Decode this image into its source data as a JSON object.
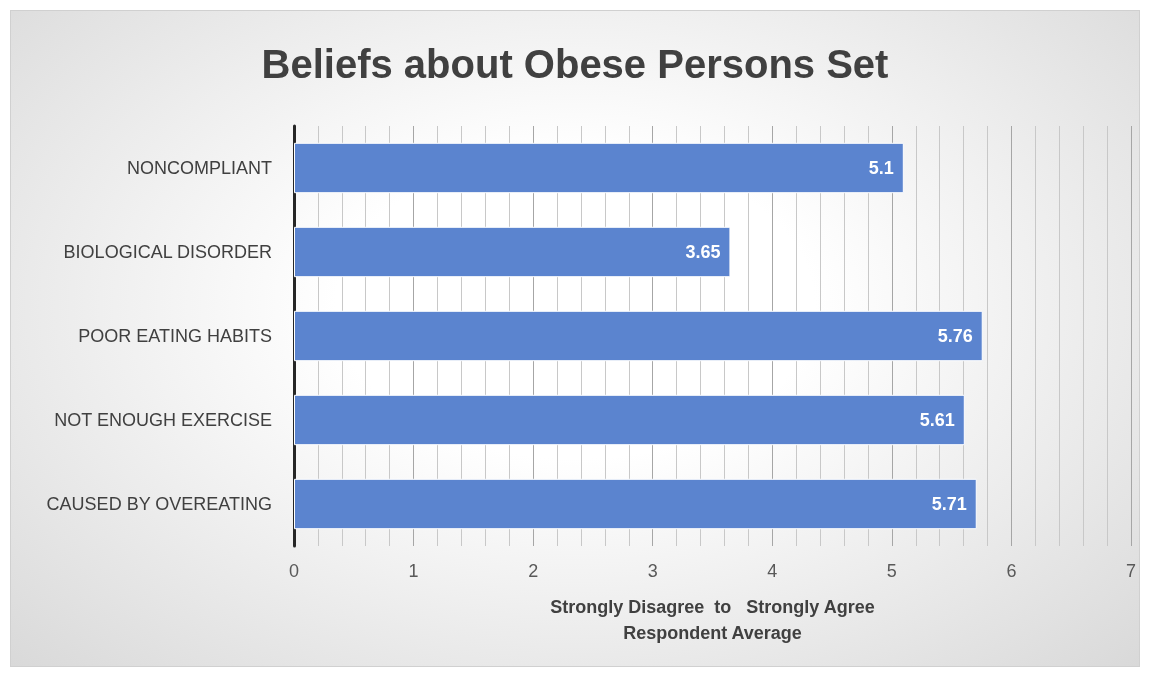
{
  "chart_data": {
    "type": "bar",
    "orientation": "horizontal",
    "title": "Beliefs about Obese Persons Set",
    "xlabel": "Strongly Disagree  to   Strongly Agree\nRespondent Average",
    "categories": [
      "NONCOMPLIANT",
      "BIOLOGICAL DISORDER",
      "POOR EATING HABITS",
      "NOT ENOUGH EXERCISE",
      "CAUSED BY OVEREATING"
    ],
    "values": [
      5.1,
      3.65,
      5.76,
      5.61,
      5.71
    ],
    "color": "#5b84cf",
    "xlim": [
      0,
      7
    ],
    "xticks": [
      0,
      1,
      2,
      3,
      4,
      5,
      6,
      7
    ],
    "grid": "x",
    "data_labels": true
  }
}
